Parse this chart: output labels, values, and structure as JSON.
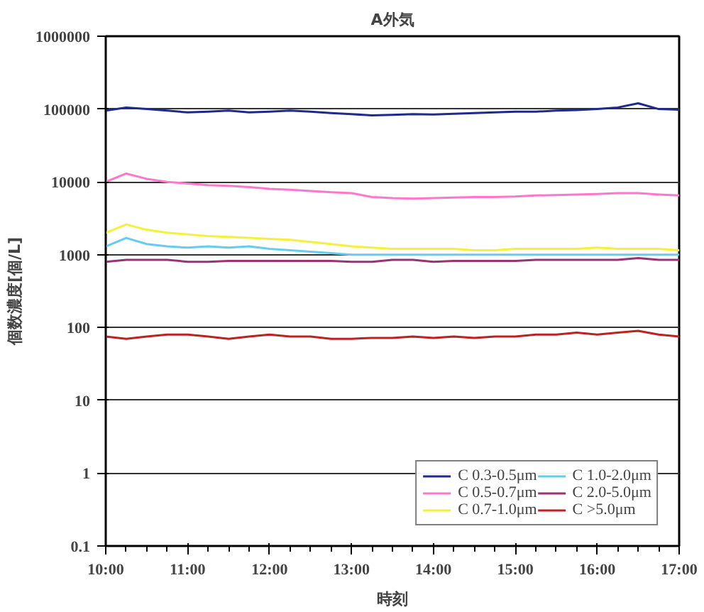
{
  "chart_data": {
    "type": "line",
    "title": "A外気",
    "xlabel": "時刻",
    "ylabel": "個数濃度[個/L]",
    "log": "y",
    "grid": "y",
    "legend": "bottom right",
    "marker": "none",
    "line_style": "solid",
    "xlim": [
      10,
      17
    ],
    "xticks": [
      {
        "value": 10,
        "label": "10:00"
      },
      {
        "value": 11,
        "label": "11:00"
      },
      {
        "value": 12,
        "label": "12:00"
      },
      {
        "value": 13,
        "label": "13:00"
      },
      {
        "value": 14,
        "label": "14:00"
      },
      {
        "value": 15,
        "label": "15:00"
      },
      {
        "value": 16,
        "label": "16:00"
      },
      {
        "value": 17,
        "label": "17:00"
      }
    ],
    "ylim": [
      0.1,
      1000000
    ],
    "yticks": [
      0.1,
      1,
      10,
      100,
      1000,
      10000,
      100000,
      1000000
    ],
    "x": [
      10,
      10.25,
      10.5,
      10.75,
      11,
      11.25,
      11.5,
      11.75,
      12,
      12.25,
      12.5,
      12.75,
      13,
      13.25,
      13.5,
      13.75,
      14,
      14.25,
      14.5,
      14.75,
      15,
      15.25,
      15.5,
      15.75,
      16,
      16.25,
      16.5,
      16.75,
      17
    ],
    "series": [
      {
        "name": "C 0.3-0.5μm",
        "color": "#1f2a8c",
        "values": [
          95000,
          105000,
          100000,
          95000,
          90000,
          92000,
          95000,
          90000,
          92000,
          95000,
          92000,
          88000,
          85000,
          82000,
          83000,
          85000,
          84000,
          86000,
          88000,
          90000,
          92000,
          92000,
          95000,
          97000,
          100000,
          105000,
          120000,
          100000,
          98000
        ]
      },
      {
        "name": "C 0.5-0.7μm",
        "color": "#ff77cc",
        "values": [
          10000,
          13000,
          11000,
          10000,
          9500,
          9000,
          8800,
          8500,
          8000,
          7800,
          7500,
          7200,
          7000,
          6200,
          6000,
          5900,
          6000,
          6100,
          6200,
          6200,
          6300,
          6500,
          6600,
          6700,
          6800,
          7000,
          7000,
          6700,
          6500
        ]
      },
      {
        "name": "C 0.7-1.0μm",
        "color": "#f5f03c",
        "values": [
          2000,
          2600,
          2200,
          2000,
          1900,
          1800,
          1750,
          1700,
          1650,
          1600,
          1500,
          1400,
          1300,
          1250,
          1200,
          1200,
          1200,
          1200,
          1150,
          1150,
          1200,
          1200,
          1200,
          1200,
          1250,
          1200,
          1200,
          1200,
          1150
        ]
      },
      {
        "name": "C 1.0-2.0μm",
        "color": "#66ccee",
        "values": [
          1300,
          1700,
          1400,
          1300,
          1250,
          1300,
          1250,
          1300,
          1200,
          1150,
          1100,
          1050,
          1000,
          1000,
          1000,
          1000,
          1000,
          1000,
          1000,
          1000,
          1000,
          1000,
          1000,
          1000,
          1000,
          1000,
          1000,
          1000,
          1000
        ]
      },
      {
        "name": "C 2.0-5.0μm",
        "color": "#993377",
        "values": [
          800,
          850,
          850,
          850,
          800,
          800,
          820,
          820,
          820,
          820,
          820,
          820,
          800,
          800,
          850,
          850,
          800,
          820,
          820,
          820,
          820,
          850,
          850,
          850,
          850,
          850,
          900,
          850,
          850
        ]
      },
      {
        "name": "C >5.0μm",
        "color": "#bb2222",
        "values": [
          75,
          70,
          75,
          80,
          80,
          75,
          70,
          75,
          80,
          75,
          75,
          70,
          70,
          72,
          72,
          75,
          72,
          75,
          72,
          75,
          75,
          80,
          80,
          85,
          80,
          85,
          90,
          80,
          75
        ]
      }
    ]
  }
}
